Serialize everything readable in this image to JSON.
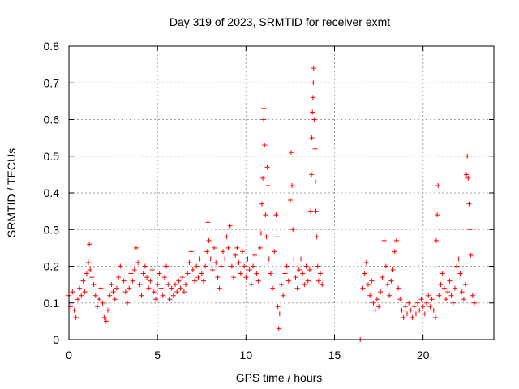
{
  "chart_data": {
    "type": "scatter",
    "title": "Day 319 of 2023, SRMTID for receiver exmt",
    "xlabel": "GPS time / hours",
    "ylabel": "SRMTID / TECUs",
    "xlim": [
      0,
      24
    ],
    "ylim": [
      0,
      0.8
    ],
    "xticks": [
      "0",
      "5",
      "10",
      "15",
      "20"
    ],
    "xtick_values": [
      0,
      5,
      10,
      15,
      20
    ],
    "yticks": [
      "0",
      "0.1",
      "0.2",
      "0.3",
      "0.4",
      "0.5",
      "0.6",
      "0.7",
      "0.8"
    ],
    "ytick_values": [
      0,
      0.1,
      0.2,
      0.3,
      0.4,
      0.5,
      0.6,
      0.7,
      0.8
    ],
    "grid": true,
    "marker": "+",
    "color": "#ff0000",
    "series": [
      {
        "name": "SRMTID",
        "points": [
          [
            0.0,
            0.12
          ],
          [
            0.1,
            0.09
          ],
          [
            0.2,
            0.13
          ],
          [
            0.3,
            0.08
          ],
          [
            0.4,
            0.06
          ],
          [
            0.5,
            0.11
          ],
          [
            0.6,
            0.14
          ],
          [
            0.7,
            0.12
          ],
          [
            0.8,
            0.16
          ],
          [
            0.9,
            0.13
          ],
          [
            1.0,
            0.18
          ],
          [
            1.1,
            0.21
          ],
          [
            1.15,
            0.26
          ],
          [
            1.2,
            0.19
          ],
          [
            1.3,
            0.17
          ],
          [
            1.4,
            0.15
          ],
          [
            1.5,
            0.12
          ],
          [
            1.6,
            0.09
          ],
          [
            1.7,
            0.11
          ],
          [
            1.8,
            0.14
          ],
          [
            1.9,
            0.1
          ],
          [
            2.0,
            0.06
          ],
          [
            2.1,
            0.05
          ],
          [
            2.2,
            0.08
          ],
          [
            2.3,
            0.12
          ],
          [
            2.4,
            0.15
          ],
          [
            2.5,
            0.13
          ],
          [
            2.6,
            0.11
          ],
          [
            2.7,
            0.14
          ],
          [
            2.8,
            0.17
          ],
          [
            2.9,
            0.2
          ],
          [
            3.0,
            0.22
          ],
          [
            3.1,
            0.16
          ],
          [
            3.2,
            0.13
          ],
          [
            3.3,
            0.1
          ],
          [
            3.4,
            0.14
          ],
          [
            3.5,
            0.18
          ],
          [
            3.6,
            0.16
          ],
          [
            3.7,
            0.19
          ],
          [
            3.8,
            0.25
          ],
          [
            3.9,
            0.21
          ],
          [
            4.0,
            0.15
          ],
          [
            4.1,
            0.12
          ],
          [
            4.2,
            0.18
          ],
          [
            4.3,
            0.2
          ],
          [
            4.4,
            0.17
          ],
          [
            4.5,
            0.14
          ],
          [
            4.6,
            0.16
          ],
          [
            4.7,
            0.19
          ],
          [
            4.8,
            0.13
          ],
          [
            4.9,
            0.11
          ],
          [
            5.0,
            0.15
          ],
          [
            5.1,
            0.18
          ],
          [
            5.2,
            0.14
          ],
          [
            5.3,
            0.12
          ],
          [
            5.4,
            0.17
          ],
          [
            5.5,
            0.2
          ],
          [
            5.6,
            0.15
          ],
          [
            5.7,
            0.11
          ],
          [
            5.8,
            0.14
          ],
          [
            5.9,
            0.12
          ],
          [
            6.0,
            0.15
          ],
          [
            6.1,
            0.13
          ],
          [
            6.2,
            0.16
          ],
          [
            6.3,
            0.14
          ],
          [
            6.4,
            0.17
          ],
          [
            6.5,
            0.13
          ],
          [
            6.6,
            0.15
          ],
          [
            6.7,
            0.18
          ],
          [
            6.8,
            0.21
          ],
          [
            6.9,
            0.24
          ],
          [
            7.0,
            0.19
          ],
          [
            7.1,
            0.16
          ],
          [
            7.2,
            0.2
          ],
          [
            7.3,
            0.17
          ],
          [
            7.4,
            0.22
          ],
          [
            7.5,
            0.18
          ],
          [
            7.6,
            0.16
          ],
          [
            7.7,
            0.2
          ],
          [
            7.8,
            0.24
          ],
          [
            7.85,
            0.32
          ],
          [
            7.9,
            0.27
          ],
          [
            8.0,
            0.22
          ],
          [
            8.1,
            0.19
          ],
          [
            8.2,
            0.25
          ],
          [
            8.3,
            0.21
          ],
          [
            8.4,
            0.17
          ],
          [
            8.5,
            0.14
          ],
          [
            8.6,
            0.2
          ],
          [
            8.7,
            0.24
          ],
          [
            8.8,
            0.22
          ],
          [
            8.9,
            0.28
          ],
          [
            9.0,
            0.25
          ],
          [
            9.1,
            0.31
          ],
          [
            9.2,
            0.2
          ],
          [
            9.3,
            0.17
          ],
          [
            9.4,
            0.23
          ],
          [
            9.5,
            0.25
          ],
          [
            9.6,
            0.21
          ],
          [
            9.7,
            0.18
          ],
          [
            9.8,
            0.24
          ],
          [
            9.9,
            0.2
          ],
          [
            10.0,
            0.17
          ],
          [
            10.1,
            0.22
          ],
          [
            10.2,
            0.19
          ],
          [
            10.3,
            0.15
          ],
          [
            10.4,
            0.2
          ],
          [
            10.5,
            0.23
          ],
          [
            10.6,
            0.18
          ],
          [
            10.7,
            0.16
          ],
          [
            10.8,
            0.25
          ],
          [
            10.85,
            0.29
          ],
          [
            10.9,
            0.37
          ],
          [
            10.95,
            0.44
          ],
          [
            11.0,
            0.6
          ],
          [
            11.02,
            0.63
          ],
          [
            11.05,
            0.53
          ],
          [
            11.1,
            0.34
          ],
          [
            11.15,
            0.28
          ],
          [
            11.2,
            0.47
          ],
          [
            11.25,
            0.42
          ],
          [
            11.3,
            0.22
          ],
          [
            11.4,
            0.18
          ],
          [
            11.5,
            0.14
          ],
          [
            11.6,
            0.24
          ],
          [
            11.7,
            0.34
          ],
          [
            11.75,
            0.28
          ],
          [
            11.8,
            0.09
          ],
          [
            11.85,
            0.03
          ],
          [
            11.9,
            0.07
          ],
          [
            12.0,
            0.15
          ],
          [
            12.1,
            0.12
          ],
          [
            12.2,
            0.18
          ],
          [
            12.3,
            0.2
          ],
          [
            12.4,
            0.16
          ],
          [
            12.5,
            0.38
          ],
          [
            12.55,
            0.51
          ],
          [
            12.6,
            0.42
          ],
          [
            12.65,
            0.3
          ],
          [
            12.7,
            0.22
          ],
          [
            12.8,
            0.17
          ],
          [
            12.9,
            0.14
          ],
          [
            13.0,
            0.19
          ],
          [
            13.1,
            0.22
          ],
          [
            13.2,
            0.18
          ],
          [
            13.3,
            0.15
          ],
          [
            13.4,
            0.2
          ],
          [
            13.5,
            0.16
          ],
          [
            13.6,
            0.19
          ],
          [
            13.65,
            0.35
          ],
          [
            13.7,
            0.45
          ],
          [
            13.72,
            0.55
          ],
          [
            13.75,
            0.62
          ],
          [
            13.78,
            0.66
          ],
          [
            13.8,
            0.7
          ],
          [
            13.82,
            0.74
          ],
          [
            13.85,
            0.6
          ],
          [
            13.9,
            0.52
          ],
          [
            13.92,
            0.43
          ],
          [
            13.95,
            0.35
          ],
          [
            14.0,
            0.28
          ],
          [
            14.05,
            0.2
          ],
          [
            14.1,
            0.16
          ],
          [
            14.2,
            0.18
          ],
          [
            14.3,
            0.15
          ],
          [
            16.45,
            0.0
          ],
          [
            16.6,
            0.14
          ],
          [
            16.7,
            0.18
          ],
          [
            16.8,
            0.21
          ],
          [
            16.9,
            0.15
          ],
          [
            17.0,
            0.12
          ],
          [
            17.1,
            0.16
          ],
          [
            17.2,
            0.1
          ],
          [
            17.3,
            0.08
          ],
          [
            17.4,
            0.11
          ],
          [
            17.5,
            0.09
          ],
          [
            17.6,
            0.13
          ],
          [
            17.7,
            0.17
          ],
          [
            17.8,
            0.27
          ],
          [
            17.9,
            0.2
          ],
          [
            18.0,
            0.15
          ],
          [
            18.1,
            0.12
          ],
          [
            18.2,
            0.16
          ],
          [
            18.3,
            0.19
          ],
          [
            18.4,
            0.24
          ],
          [
            18.5,
            0.27
          ],
          [
            18.6,
            0.14
          ],
          [
            18.7,
            0.11
          ],
          [
            18.8,
            0.08
          ],
          [
            18.9,
            0.06
          ],
          [
            19.0,
            0.09
          ],
          [
            19.1,
            0.07
          ],
          [
            19.2,
            0.1
          ],
          [
            19.3,
            0.08
          ],
          [
            19.4,
            0.06
          ],
          [
            19.5,
            0.09
          ],
          [
            19.6,
            0.07
          ],
          [
            19.7,
            0.1
          ],
          [
            19.8,
            0.08
          ],
          [
            19.9,
            0.11
          ],
          [
            20.0,
            0.09
          ],
          [
            20.1,
            0.07
          ],
          [
            20.2,
            0.1
          ],
          [
            20.3,
            0.12
          ],
          [
            20.4,
            0.09
          ],
          [
            20.5,
            0.11
          ],
          [
            20.6,
            0.08
          ],
          [
            20.7,
            0.06
          ],
          [
            20.75,
            0.27
          ],
          [
            20.8,
            0.34
          ],
          [
            20.85,
            0.42
          ],
          [
            20.9,
            0.12
          ],
          [
            21.0,
            0.15
          ],
          [
            21.1,
            0.18
          ],
          [
            21.2,
            0.14
          ],
          [
            21.3,
            0.11
          ],
          [
            21.4,
            0.13
          ],
          [
            21.5,
            0.16
          ],
          [
            21.6,
            0.12
          ],
          [
            21.7,
            0.1
          ],
          [
            21.8,
            0.14
          ],
          [
            21.9,
            0.2
          ],
          [
            22.0,
            0.22
          ],
          [
            22.1,
            0.18
          ],
          [
            22.2,
            0.13
          ],
          [
            22.3,
            0.11
          ],
          [
            22.4,
            0.15
          ],
          [
            22.45,
            0.45
          ],
          [
            22.5,
            0.5
          ],
          [
            22.55,
            0.44
          ],
          [
            22.6,
            0.37
          ],
          [
            22.65,
            0.3
          ],
          [
            22.7,
            0.23
          ],
          [
            22.8,
            0.12
          ],
          [
            22.9,
            0.1
          ]
        ]
      }
    ]
  }
}
